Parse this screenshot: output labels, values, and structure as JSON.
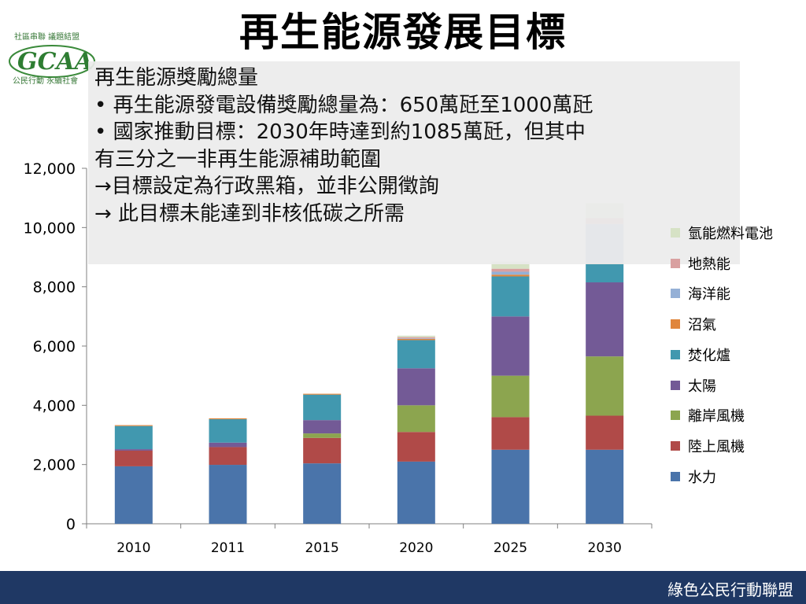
{
  "header": {
    "title": "再生能源發展目標"
  },
  "logo": {
    "text_top": "社區串聯 議題結盟",
    "text_main": "GCAA",
    "text_bottom": "公民行動 永續社會"
  },
  "overlay": {
    "lines": [
      "再生能源獎勵總量",
      "• 再生能源發電設備獎勵總量為：650萬瓩至1000萬瓩",
      "• 國家推動目標：2030年時達到約1085萬瓩，但其中",
      "有三分之一非再生能源補助範圍",
      "→目標設定為行政黑箱，並非公開徵詢",
      "→ 此目標未能達到非核低碳之所需"
    ]
  },
  "chart_data": {
    "type": "bar",
    "stacked": true,
    "categories": [
      "2010",
      "2011",
      "2015",
      "2020",
      "2025",
      "2030"
    ],
    "ylim": [
      0,
      12000
    ],
    "yticks": [
      "0",
      "2,000",
      "4,000",
      "6,000",
      "8,000",
      "10,000",
      "12,000"
    ],
    "legend_position": "right",
    "series": [
      {
        "name": "水力",
        "color": "#4a74aa",
        "values": [
          1940,
          1990,
          2040,
          2100,
          2500,
          2500
        ]
      },
      {
        "name": "陸上風機",
        "color": "#b04a48",
        "values": [
          530,
          600,
          860,
          1000,
          1100,
          1150
        ]
      },
      {
        "name": "離岸風機",
        "color": "#8ca54f",
        "values": [
          0,
          0,
          150,
          900,
          1400,
          2000
        ]
      },
      {
        "name": "太陽",
        "color": "#735a96",
        "values": [
          50,
          150,
          450,
          1250,
          2000,
          2500
        ]
      },
      {
        "name": "焚化爐",
        "color": "#4198af",
        "values": [
          780,
          790,
          860,
          950,
          1350,
          620
        ]
      },
      {
        "name": "沼氣",
        "color": "#e0863c",
        "values": [
          30,
          30,
          30,
          40,
          60,
          20
        ]
      },
      {
        "name": "海洋能",
        "color": "#95b0d6",
        "values": [
          0,
          0,
          0,
          20,
          100,
          1330
        ]
      },
      {
        "name": "地熱能",
        "color": "#d9a0a0",
        "values": [
          0,
          0,
          0,
          40,
          100,
          200
        ]
      },
      {
        "name": "氫能燃料電池",
        "color": "#d6e2c5",
        "values": [
          0,
          0,
          0,
          50,
          240,
          500
        ]
      }
    ]
  },
  "footer": {
    "text": "綠色公民行動聯盟"
  }
}
